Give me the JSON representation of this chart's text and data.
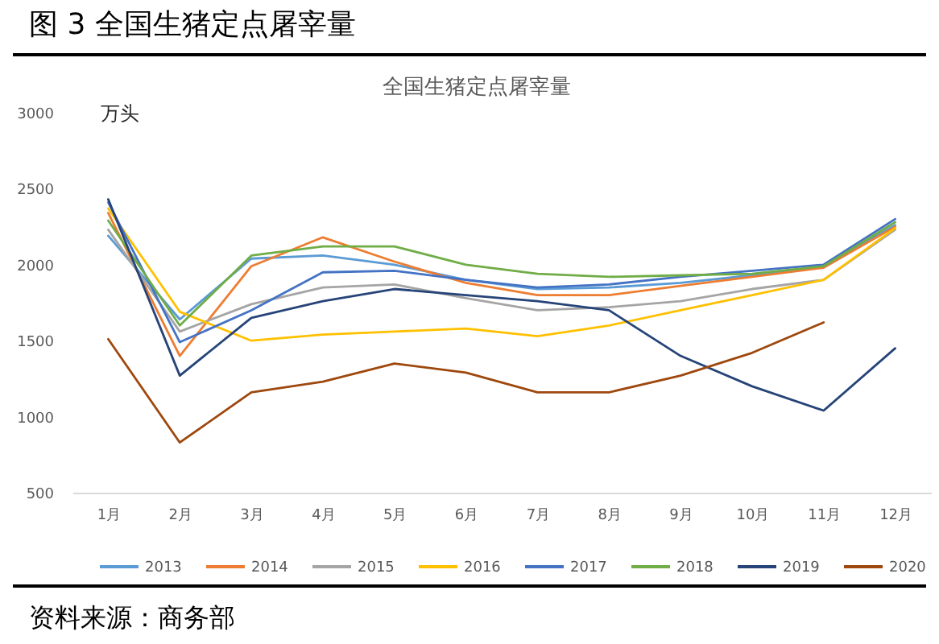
{
  "chart_data": {
    "type": "line",
    "title": "图 3 全国生猪定点屠宰量",
    "subtitle": "全国生猪定点屠宰量",
    "ylabel": "万头",
    "annotations": [
      "资料来源：商务部"
    ],
    "categories": [
      "1月",
      "2月",
      "3月",
      "4月",
      "5月",
      "6月",
      "7月",
      "8月",
      "9月",
      "10月",
      "11月",
      "12月"
    ],
    "ylim": [
      500,
      3000
    ],
    "yticks": [
      500,
      1000,
      1500,
      2000,
      2500,
      3000
    ],
    "legend": "bottom",
    "series": [
      {
        "name": "2013",
        "color": "#5b9bd5",
        "values": [
          2190,
          1640,
          2040,
          2060,
          2000,
          1900,
          1840,
          1850,
          1880,
          1930,
          1990,
          2260
        ]
      },
      {
        "name": "2014",
        "color": "#ed7d31",
        "values": [
          2340,
          1400,
          1990,
          2180,
          2020,
          1880,
          1800,
          1800,
          1860,
          1920,
          1980,
          2250
        ]
      },
      {
        "name": "2015",
        "color": "#a5a5a5",
        "values": [
          2230,
          1560,
          1740,
          1850,
          1870,
          1780,
          1700,
          1720,
          1760,
          1840,
          1900,
          2230
        ]
      },
      {
        "name": "2016",
        "color": "#ffc000",
        "values": [
          2370,
          1690,
          1500,
          1540,
          1560,
          1580,
          1530,
          1600,
          1700,
          1800,
          1900,
          2240
        ]
      },
      {
        "name": "2017",
        "color": "#4472c4",
        "values": [
          2410,
          1490,
          1700,
          1950,
          1960,
          1900,
          1850,
          1870,
          1920,
          1960,
          2000,
          2300
        ]
      },
      {
        "name": "2018",
        "color": "#70ad47",
        "values": [
          2290,
          1600,
          2060,
          2120,
          2120,
          2000,
          1940,
          1920,
          1930,
          1940,
          1990,
          2280
        ]
      },
      {
        "name": "2019",
        "color": "#264478",
        "values": [
          2430,
          1270,
          1650,
          1760,
          1840,
          1800,
          1760,
          1700,
          1400,
          1200,
          1040,
          1450
        ]
      },
      {
        "name": "2020",
        "color": "#9e480e",
        "values": [
          1510,
          830,
          1160,
          1230,
          1350,
          1290,
          1160,
          1160,
          1270,
          1420,
          1620,
          null
        ]
      }
    ]
  }
}
